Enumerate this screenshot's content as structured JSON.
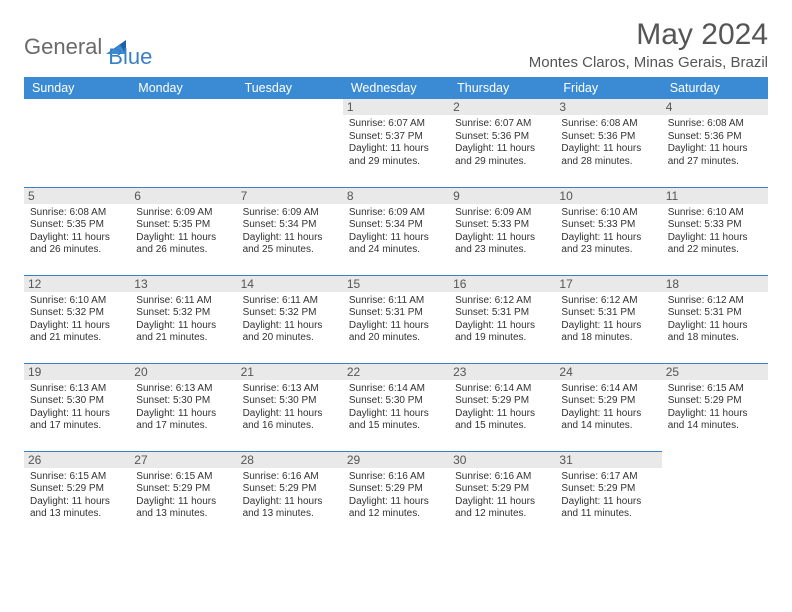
{
  "brand": {
    "word1": "General",
    "word2": "Blue"
  },
  "title": "May 2024",
  "location": "Montes Claros, Minas Gerais, Brazil",
  "colors": {
    "header_bg": "#3b8bd4",
    "header_text": "#ffffff",
    "rule": "#3b7fc4",
    "daynum_bg": "#e9e9e9",
    "text": "#333333",
    "title_text": "#555555",
    "logo_gray": "#6a6a6a",
    "logo_blue": "#3b7fc4",
    "page_bg": "#ffffff"
  },
  "typography": {
    "title_fontsize": 30,
    "location_fontsize": 15,
    "header_fontsize": 12.5,
    "daynum_fontsize": 12,
    "info_fontsize": 10,
    "logo_fontsize": 22
  },
  "dayNames": [
    "Sunday",
    "Monday",
    "Tuesday",
    "Wednesday",
    "Thursday",
    "Friday",
    "Saturday"
  ],
  "weeks": [
    [
      null,
      null,
      null,
      {
        "d": "1",
        "sr": "6:07 AM",
        "ss": "5:37 PM",
        "dl": "11 hours and 29 minutes."
      },
      {
        "d": "2",
        "sr": "6:07 AM",
        "ss": "5:36 PM",
        "dl": "11 hours and 29 minutes."
      },
      {
        "d": "3",
        "sr": "6:08 AM",
        "ss": "5:36 PM",
        "dl": "11 hours and 28 minutes."
      },
      {
        "d": "4",
        "sr": "6:08 AM",
        "ss": "5:36 PM",
        "dl": "11 hours and 27 minutes."
      }
    ],
    [
      {
        "d": "5",
        "sr": "6:08 AM",
        "ss": "5:35 PM",
        "dl": "11 hours and 26 minutes."
      },
      {
        "d": "6",
        "sr": "6:09 AM",
        "ss": "5:35 PM",
        "dl": "11 hours and 26 minutes."
      },
      {
        "d": "7",
        "sr": "6:09 AM",
        "ss": "5:34 PM",
        "dl": "11 hours and 25 minutes."
      },
      {
        "d": "8",
        "sr": "6:09 AM",
        "ss": "5:34 PM",
        "dl": "11 hours and 24 minutes."
      },
      {
        "d": "9",
        "sr": "6:09 AM",
        "ss": "5:33 PM",
        "dl": "11 hours and 23 minutes."
      },
      {
        "d": "10",
        "sr": "6:10 AM",
        "ss": "5:33 PM",
        "dl": "11 hours and 23 minutes."
      },
      {
        "d": "11",
        "sr": "6:10 AM",
        "ss": "5:33 PM",
        "dl": "11 hours and 22 minutes."
      }
    ],
    [
      {
        "d": "12",
        "sr": "6:10 AM",
        "ss": "5:32 PM",
        "dl": "11 hours and 21 minutes."
      },
      {
        "d": "13",
        "sr": "6:11 AM",
        "ss": "5:32 PM",
        "dl": "11 hours and 21 minutes."
      },
      {
        "d": "14",
        "sr": "6:11 AM",
        "ss": "5:32 PM",
        "dl": "11 hours and 20 minutes."
      },
      {
        "d": "15",
        "sr": "6:11 AM",
        "ss": "5:31 PM",
        "dl": "11 hours and 20 minutes."
      },
      {
        "d": "16",
        "sr": "6:12 AM",
        "ss": "5:31 PM",
        "dl": "11 hours and 19 minutes."
      },
      {
        "d": "17",
        "sr": "6:12 AM",
        "ss": "5:31 PM",
        "dl": "11 hours and 18 minutes."
      },
      {
        "d": "18",
        "sr": "6:12 AM",
        "ss": "5:31 PM",
        "dl": "11 hours and 18 minutes."
      }
    ],
    [
      {
        "d": "19",
        "sr": "6:13 AM",
        "ss": "5:30 PM",
        "dl": "11 hours and 17 minutes."
      },
      {
        "d": "20",
        "sr": "6:13 AM",
        "ss": "5:30 PM",
        "dl": "11 hours and 17 minutes."
      },
      {
        "d": "21",
        "sr": "6:13 AM",
        "ss": "5:30 PM",
        "dl": "11 hours and 16 minutes."
      },
      {
        "d": "22",
        "sr": "6:14 AM",
        "ss": "5:30 PM",
        "dl": "11 hours and 15 minutes."
      },
      {
        "d": "23",
        "sr": "6:14 AM",
        "ss": "5:29 PM",
        "dl": "11 hours and 15 minutes."
      },
      {
        "d": "24",
        "sr": "6:14 AM",
        "ss": "5:29 PM",
        "dl": "11 hours and 14 minutes."
      },
      {
        "d": "25",
        "sr": "6:15 AM",
        "ss": "5:29 PM",
        "dl": "11 hours and 14 minutes."
      }
    ],
    [
      {
        "d": "26",
        "sr": "6:15 AM",
        "ss": "5:29 PM",
        "dl": "11 hours and 13 minutes."
      },
      {
        "d": "27",
        "sr": "6:15 AM",
        "ss": "5:29 PM",
        "dl": "11 hours and 13 minutes."
      },
      {
        "d": "28",
        "sr": "6:16 AM",
        "ss": "5:29 PM",
        "dl": "11 hours and 13 minutes."
      },
      {
        "d": "29",
        "sr": "6:16 AM",
        "ss": "5:29 PM",
        "dl": "11 hours and 12 minutes."
      },
      {
        "d": "30",
        "sr": "6:16 AM",
        "ss": "5:29 PM",
        "dl": "11 hours and 12 minutes."
      },
      {
        "d": "31",
        "sr": "6:17 AM",
        "ss": "5:29 PM",
        "dl": "11 hours and 11 minutes."
      },
      null
    ]
  ],
  "labels": {
    "sunrise": "Sunrise:",
    "sunset": "Sunset:",
    "daylight": "Daylight:"
  }
}
